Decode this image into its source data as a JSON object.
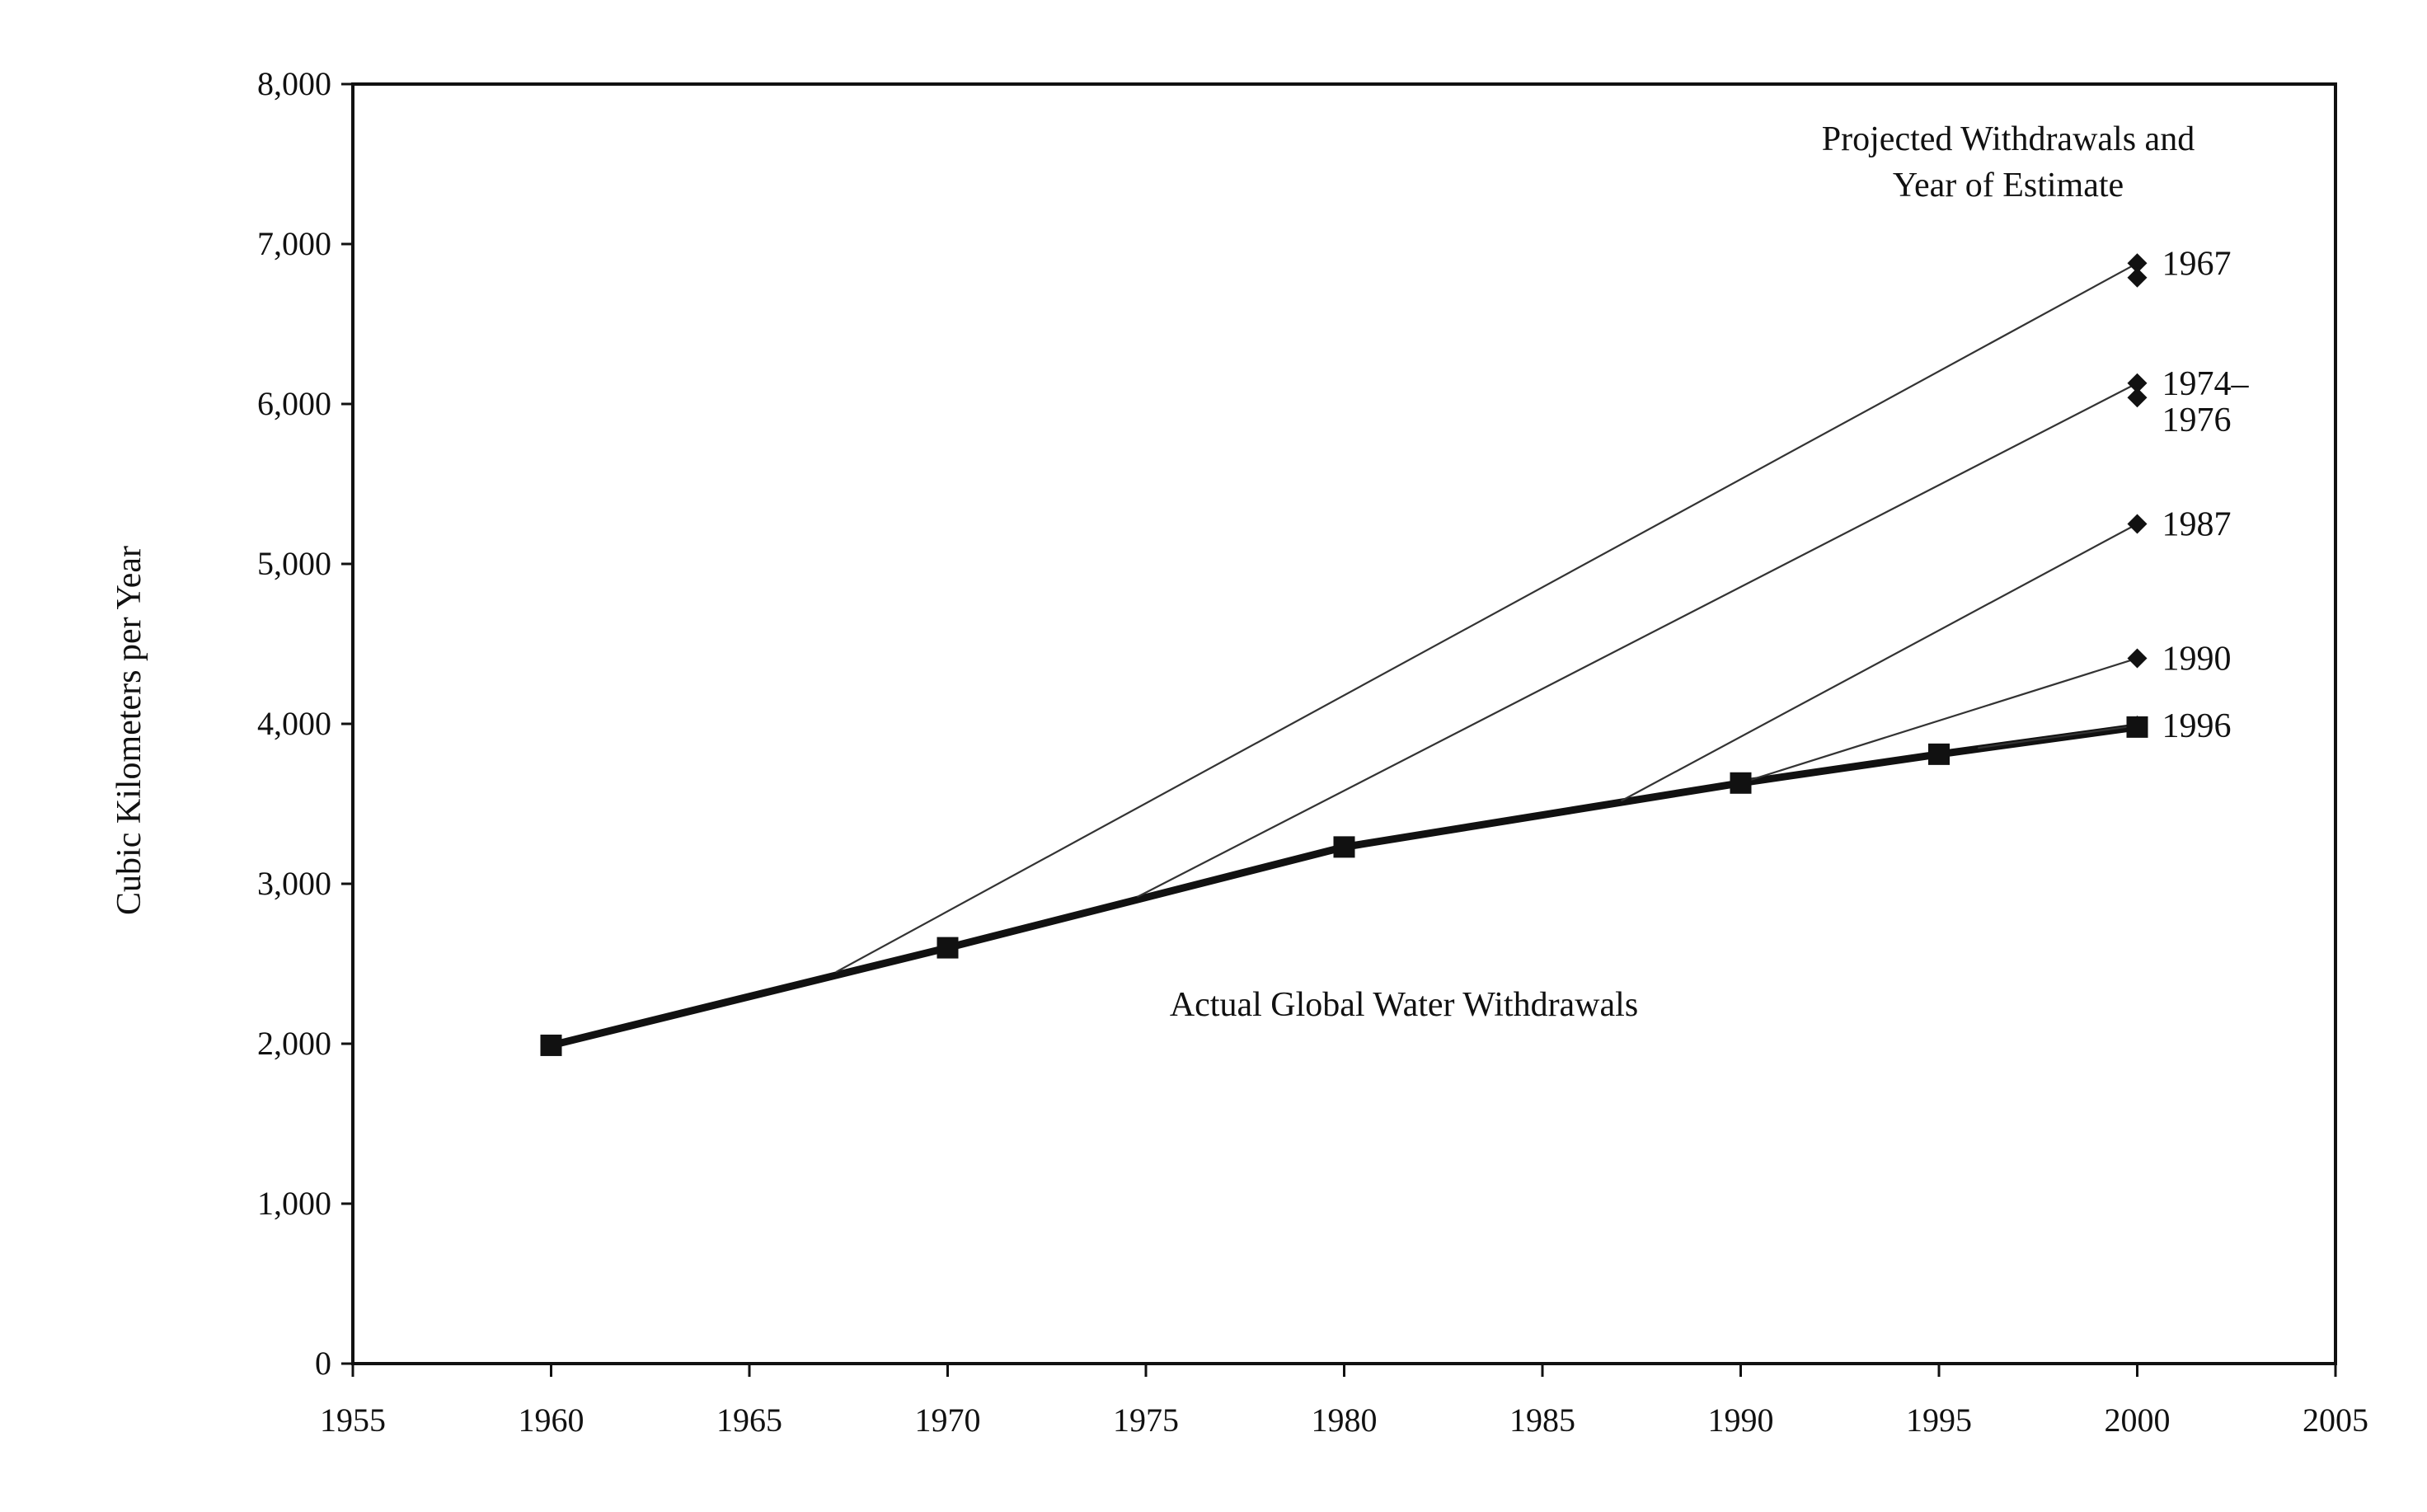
{
  "chart_data": {
    "type": "line",
    "title": "",
    "xlabel": "",
    "ylabel": "Cubic Kilometers per Year",
    "xlim": [
      1955,
      2005
    ],
    "ylim": [
      0,
      8000
    ],
    "x_ticks": [
      1955,
      1960,
      1965,
      1970,
      1975,
      1980,
      1985,
      1990,
      1995,
      2000,
      2005
    ],
    "x_tick_labels": [
      "1955",
      "1960",
      "1965",
      "1970",
      "1975",
      "1980",
      "1985",
      "1990",
      "1995",
      "2000",
      "2005"
    ],
    "y_ticks": [
      0,
      1000,
      2000,
      3000,
      4000,
      5000,
      6000,
      7000,
      8000
    ],
    "y_tick_labels": [
      "0",
      "1,000",
      "2,000",
      "3,000",
      "4,000",
      "5,000",
      "6,000",
      "7,000",
      "8,000"
    ],
    "grid": false,
    "legend": "none",
    "annotations": {
      "projected_header": [
        "Projected Withdrawals and",
        "Year of Estimate"
      ],
      "actual": "Actual Global Water Withdrawals"
    },
    "series": [
      {
        "name": "Actual Global Water Withdrawals",
        "style": "bold-line-square-markers",
        "color": "#111111",
        "points": [
          {
            "x": 1960,
            "y": 1990
          },
          {
            "x": 1970,
            "y": 2600
          },
          {
            "x": 1980,
            "y": 3230
          },
          {
            "x": 1990,
            "y": 3630
          },
          {
            "x": 1995,
            "y": 3810
          },
          {
            "x": 2000,
            "y": 3980
          }
        ]
      },
      {
        "name": "1967",
        "style": "thin-line-diamond-marker",
        "color": "#333333",
        "points": [
          {
            "x": 1967.2,
            "y": 2450
          },
          {
            "x": 2000,
            "y": 6880
          }
        ],
        "extra_markers": [
          {
            "x": 2000,
            "y": 6790
          }
        ]
      },
      {
        "name": "1974–\n1976",
        "style": "thin-line-diamond-marker",
        "color": "#333333",
        "points": [
          {
            "x": 1974.8,
            "y": 2920
          },
          {
            "x": 2000,
            "y": 6130
          }
        ],
        "extra_markers": [
          {
            "x": 2000,
            "y": 6040
          }
        ]
      },
      {
        "name": "1987",
        "style": "thin-line-diamond-marker",
        "color": "#333333",
        "points": [
          {
            "x": 1987,
            "y": 3520
          },
          {
            "x": 2000,
            "y": 5250
          }
        ]
      },
      {
        "name": "1990",
        "style": "thin-line-diamond-marker",
        "color": "#333333",
        "points": [
          {
            "x": 1990,
            "y": 3630
          },
          {
            "x": 2000,
            "y": 4410
          }
        ]
      },
      {
        "name": "1996",
        "style": "thin-line-diamond-marker",
        "color": "#333333",
        "points": [
          {
            "x": 1996,
            "y": 3850
          },
          {
            "x": 2000,
            "y": 3990
          }
        ]
      }
    ]
  }
}
